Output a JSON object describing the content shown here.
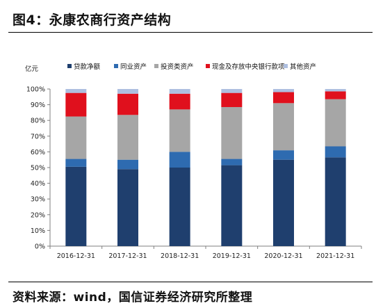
{
  "figure_title": "图4：永康农商行资产结构",
  "source_note": "资料来源：wind，国信证券经济研究所整理",
  "chart_data": {
    "type": "bar",
    "stacked": true,
    "unit_label": "亿元",
    "categories": [
      "2016-12-31",
      "2017-12-31",
      "2018-12-31",
      "2019-12-31",
      "2020-12-31",
      "2021-12-31"
    ],
    "y_ticks": [
      "0%",
      "10%",
      "20%",
      "30%",
      "40%",
      "50%",
      "60%",
      "70%",
      "80%",
      "90%",
      "100%"
    ],
    "ylim": [
      0,
      100
    ],
    "grid": false,
    "legend_position": "top",
    "series": [
      {
        "name": "贷款净额",
        "color": "#1f3f6e",
        "values": [
          50.5,
          49,
          50,
          51.5,
          55,
          56.5
        ]
      },
      {
        "name": "同业资产",
        "color": "#2e6bb0",
        "values": [
          5,
          6,
          10,
          4,
          6,
          7
        ]
      },
      {
        "name": "投资类资产",
        "color": "#a6a6a6",
        "values": [
          27,
          28.5,
          27,
          33,
          30,
          30
        ]
      },
      {
        "name": "现金及存放中央银行款项",
        "color": "#e0101d",
        "values": [
          15,
          13.5,
          10,
          9,
          7,
          5
        ]
      },
      {
        "name": "其他资产",
        "color": "#aebfe0",
        "values": [
          2.5,
          3,
          3,
          2.5,
          2,
          1.5
        ]
      }
    ]
  }
}
